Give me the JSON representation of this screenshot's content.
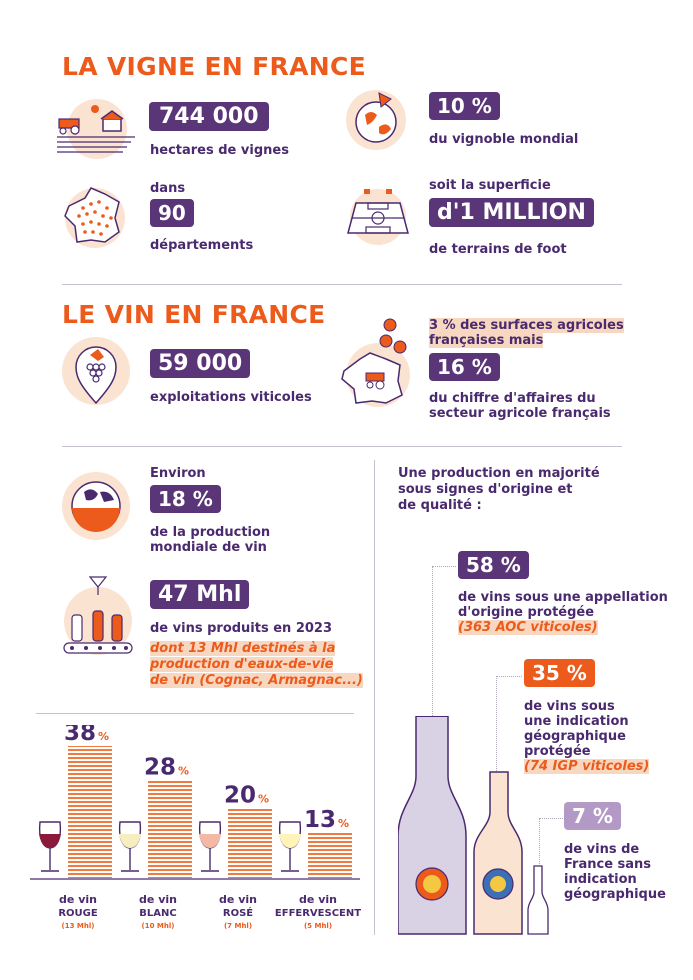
{
  "section1": {
    "title": "LA VIGNE EN FRANCE",
    "hectares": {
      "value": "744 000",
      "label": "hectares de vignes"
    },
    "world_share": {
      "value": "10 %",
      "label": "du vignoble mondial"
    },
    "departments": {
      "pre": "dans",
      "value": "90",
      "label": "départements"
    },
    "football": {
      "pre": "soit la superficie",
      "value": "d'1 MILLION",
      "label": "de terrains de foot"
    }
  },
  "section2": {
    "title": "LE VIN EN FRANCE",
    "farms": {
      "value": "59 000",
      "label": "exploitations viticoles"
    },
    "surface": {
      "line1": "3 % des surfaces agricoles",
      "line2": "françaises mais",
      "value": "16 %",
      "label1": "du chiffre d'affaires du",
      "label2": "secteur agricole français"
    }
  },
  "section3": {
    "world_production": {
      "pre": "Environ",
      "value": "18 %",
      "label1": "de la production",
      "label2": "mondiale de vin"
    },
    "volume": {
      "value": "47 Mhl",
      "label": "de vins produits en 2023",
      "note1": "dont 13 Mhl destinés à la",
      "note2": "production d'eaux-de-vie",
      "note3": "de vin (Cognac, Armagnac...)"
    }
  },
  "origin": {
    "title1": "Une production en majorité",
    "title2": "sous signes d'origine et",
    "title3": "de qualité :",
    "aop": {
      "value": "58 %",
      "l1": "de vins sous une appellation",
      "l2": "d'origine protégée",
      "note": "(363 AOC viticoles)"
    },
    "igp": {
      "value": "35 %",
      "l1": "de vins sous",
      "l2": "une indication",
      "l3": "géographique",
      "l4": "protégée",
      "note": "(74 IGP viticoles)"
    },
    "none": {
      "value": "7 %",
      "l1": "de vins de",
      "l2": "France sans",
      "l3": "indication",
      "l4": "géographique"
    }
  },
  "chart_data": {
    "type": "bar",
    "categories": [
      "ROUGE",
      "BLANC",
      "ROSÉ",
      "EFFERVESCENT"
    ],
    "values": [
      38,
      28,
      20,
      13
    ],
    "value_labels": [
      "38",
      "28",
      "20",
      "13"
    ],
    "unit": "%",
    "prefix": "de vin",
    "volumes": [
      "(13 Mhl)",
      "(10 Mhl)",
      "(7 Mhl)",
      "(5 Mhl)"
    ],
    "colors": {
      "bar": "#f07a3f",
      "text": "#4a2a6e",
      "accent": "#ec5a1c"
    }
  },
  "colors": {
    "purple": "#5a3678",
    "orange": "#ec5a1c",
    "lilac": "#b39ac6",
    "peach": "#fbe3d2"
  },
  "icons": [
    "tractor-field-icon",
    "globe-pie-icon",
    "france-map-icon",
    "football-field-icon",
    "grape-pin-icon",
    "france-coins-icon",
    "globe-wine-icon",
    "bottling-line-icon",
    "wine-glass-icon",
    "bottle-icon"
  ]
}
